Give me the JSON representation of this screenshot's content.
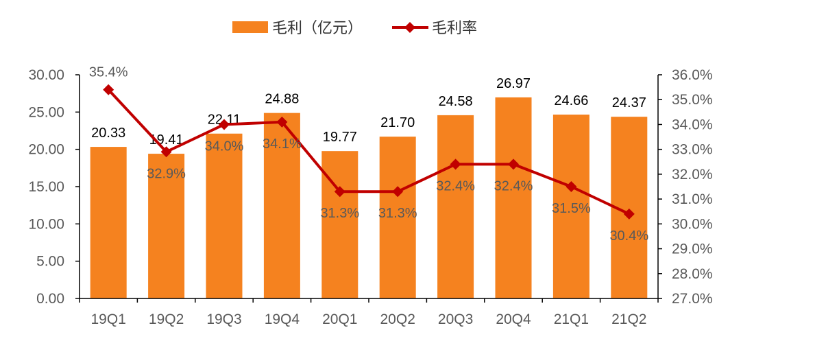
{
  "chart_data": {
    "type": "bar+line",
    "categories": [
      "19Q1",
      "19Q2",
      "19Q3",
      "19Q4",
      "20Q1",
      "20Q2",
      "20Q3",
      "20Q4",
      "21Q1",
      "21Q2"
    ],
    "series": [
      {
        "name": "毛利（亿元）",
        "type": "bar",
        "axis": "left",
        "color": "#F5821F",
        "values": [
          20.33,
          19.41,
          22.11,
          24.88,
          19.77,
          21.7,
          24.58,
          26.97,
          24.66,
          24.37
        ],
        "labels": [
          "20.33",
          "19.41",
          "22.11",
          "24.88",
          "19.77",
          "21.70",
          "24.58",
          "26.97",
          "24.66",
          "24.37"
        ]
      },
      {
        "name": "毛利率",
        "type": "line",
        "axis": "right",
        "color": "#C00000",
        "marker": "diamond",
        "values": [
          35.4,
          32.9,
          34.0,
          34.1,
          31.3,
          31.3,
          32.4,
          32.4,
          31.5,
          30.4
        ],
        "labels": [
          "35.4%",
          "32.9%",
          "34.0%",
          "34.1%",
          "31.3%",
          "31.3%",
          "32.4%",
          "32.4%",
          "31.5%",
          "30.4%"
        ]
      }
    ],
    "y_left": {
      "min": 0,
      "max": 30,
      "step": 5,
      "tick_labels": [
        "0.00",
        "5.00",
        "10.00",
        "15.00",
        "20.00",
        "25.00",
        "30.00"
      ]
    },
    "y_right": {
      "min": 27,
      "max": 36,
      "step": 1,
      "tick_labels": [
        "27.0%",
        "28.0%",
        "29.0%",
        "30.0%",
        "31.0%",
        "32.0%",
        "33.0%",
        "34.0%",
        "35.0%",
        "36.0%"
      ]
    },
    "legend_position": "top-center",
    "grid": false
  }
}
